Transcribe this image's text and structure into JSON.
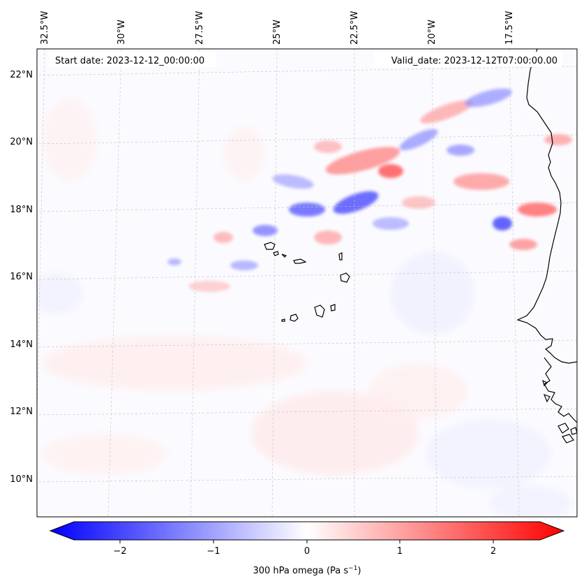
{
  "map": {
    "start_label": "Start date: 2023-12-12_00:00:00",
    "valid_label": "Valid_date: 2023-12-12T07:00:00.00",
    "lon_labels": [
      "32.5°W",
      "30°W",
      "27.5°W",
      "25°W",
      "22.5°W",
      "20°W",
      "17.5°W"
    ],
    "lat_labels": [
      "22°N",
      "20°N",
      "18°N",
      "16°N",
      "14°N",
      "12°N",
      "10°N"
    ],
    "extent": {
      "lon_min": -33.0,
      "lon_max": -15.5,
      "lat_min": 8.9,
      "lat_max": 22.8
    },
    "field": "300 hPa omega",
    "islands": "Cape Verde",
    "coastline": "West Africa (Mauritania / Senegal / Guinea-Bissau)"
  },
  "colorbar": {
    "label_main": "300 hPa omega (Pa s",
    "label_exp": "−1",
    "label_close": ")",
    "ticks": [
      "−2",
      "−1",
      "0",
      "1",
      "2"
    ],
    "tick_values": [
      -2,
      -1,
      0,
      1,
      2
    ],
    "range": [
      -2.6,
      2.6
    ],
    "cmap": "bwr",
    "colors": {
      "min": "#0000ff",
      "mid": "#ffffff",
      "max": "#ff0000"
    }
  }
}
